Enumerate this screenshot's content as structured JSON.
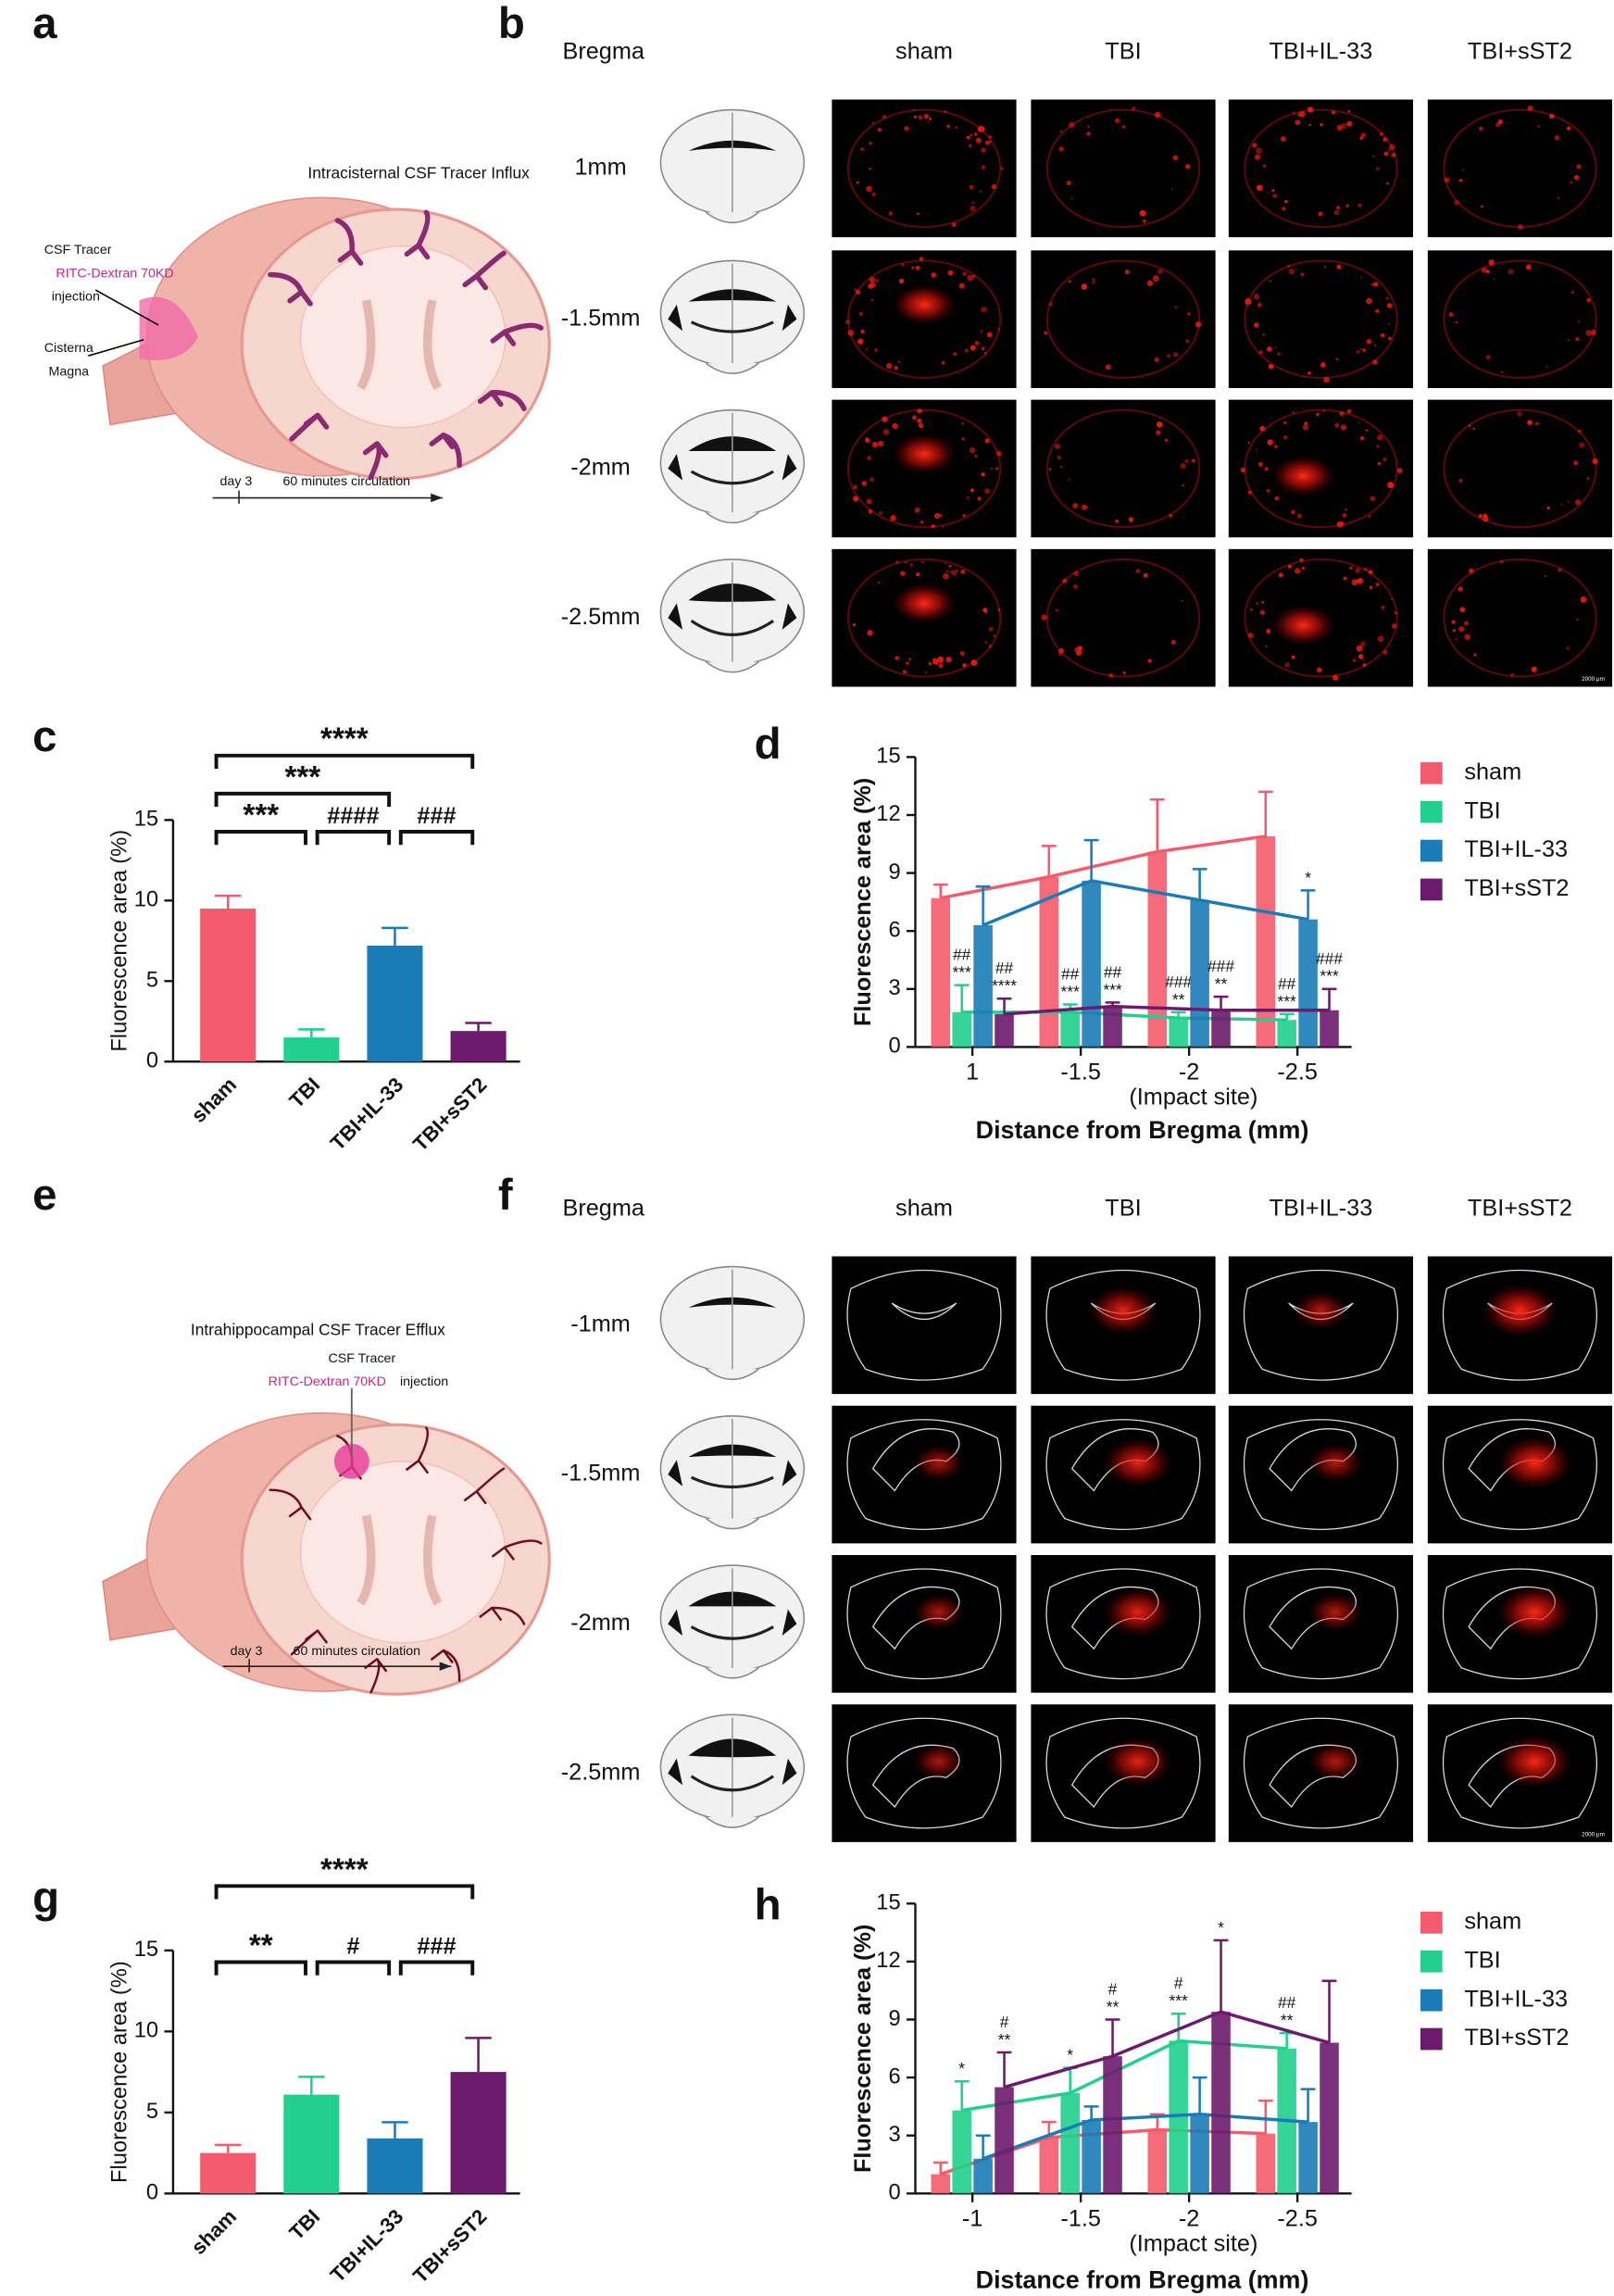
{
  "figure": {
    "panel_labels": [
      "a",
      "b",
      "c",
      "d",
      "e",
      "f",
      "g",
      "h"
    ],
    "a": {
      "title": "Intracisternal  CSF Tracer Influx",
      "tracer": "CSF Tracer",
      "dextran": "RITC-Dextran 70KD",
      "injection": "injection",
      "cisterna": "Cisterna",
      "magna": "Magna",
      "day": "day 3",
      "circulation": "60 minutes circulation"
    },
    "b": {
      "bregma": "Bregma",
      "columns": [
        "sham",
        "TBI",
        "TBI+IL-33",
        "TBI+sST2"
      ],
      "rows": [
        "1mm",
        "-1.5mm",
        "-2mm",
        "-2.5mm"
      ],
      "scale_bar": "2000 μm"
    },
    "e": {
      "title": "Intrahippocampal  CSF Tracer Efflux",
      "tracer": "CSF Tracer",
      "dextran": "RITC-Dextran 70KD",
      "injection": "injection",
      "day": "day 3",
      "circulation": "60 minutes circulation"
    },
    "f": {
      "bregma": "Bregma",
      "columns": [
        "sham",
        "TBI",
        "TBI+IL-33",
        "TBI+sST2"
      ],
      "rows": [
        "-1mm",
        "-1.5mm",
        "-2mm",
        "-2.5mm"
      ],
      "scale_bar": "2000 μm"
    }
  },
  "chart_data": [
    {
      "type": "bar",
      "ylabel": "Fluorescence area (%)",
      "categories": [
        "sham",
        "TBI",
        "TBI+IL-33",
        "TBI+sST2"
      ],
      "values": [
        9.5,
        1.5,
        7.2,
        1.9
      ],
      "errors": [
        0.8,
        0.5,
        1.1,
        0.5
      ],
      "colors": [
        "#f45b6c",
        "#20d08c",
        "#1a7bb6",
        "#6b1a6c"
      ],
      "ylim": [
        0,
        15
      ],
      "yticks": [
        0,
        5,
        10,
        15
      ],
      "brackets": [
        {
          "text": "****",
          "between": [
            "sham",
            "TBI+sST2"
          ]
        },
        {
          "text": "***",
          "between": [
            "sham",
            "TBI+IL-33"
          ]
        },
        {
          "text": "***",
          "between": [
            "sham",
            "TBI"
          ]
        },
        {
          "text": "####",
          "between": [
            "TBI",
            "TBI+IL-33"
          ]
        },
        {
          "text": "###",
          "between": [
            "TBI+IL-33",
            "TBI+sST2"
          ]
        }
      ]
    },
    {
      "type": "bar",
      "ylabel": "Fluorescence area (%)",
      "xlabel": "Distance from Bregma (mm)",
      "note": "(Impact site)",
      "note_at": "-2",
      "connect_series": true,
      "categories": [
        "1",
        "-1.5",
        "-2",
        "-2.5"
      ],
      "ylim": [
        0,
        15
      ],
      "yticks": [
        0,
        3,
        6,
        9,
        12,
        15
      ],
      "series": [
        {
          "name": "sham",
          "color": "#f45b6c",
          "values": [
            7.7,
            8.8,
            10.1,
            10.9
          ],
          "errors": [
            0.7,
            1.6,
            2.7,
            2.3
          ]
        },
        {
          "name": "TBI",
          "color": "#20d08c",
          "values": [
            1.8,
            1.8,
            1.5,
            1.4
          ],
          "errors": [
            1.4,
            0.4,
            0.3,
            0.3
          ],
          "annotations": [
            [
              "##",
              "***"
            ],
            [
              "##",
              "***"
            ],
            [
              "###",
              "**"
            ],
            [
              "##",
              "***"
            ]
          ]
        },
        {
          "name": "TBI+IL-33",
          "color": "#1a7bb6",
          "values": [
            6.3,
            8.6,
            7.6,
            6.6
          ],
          "errors": [
            2.0,
            2.1,
            1.6,
            1.5
          ],
          "annotations": [
            null,
            null,
            null,
            [
              "*"
            ]
          ]
        },
        {
          "name": "TBI+sST2",
          "color": "#6b1a6c",
          "values": [
            1.7,
            2.1,
            1.9,
            1.9
          ],
          "errors": [
            0.8,
            0.2,
            0.7,
            1.1
          ],
          "annotations": [
            [
              "##",
              "****"
            ],
            [
              "##",
              "***"
            ],
            [
              "###",
              "**"
            ],
            [
              "###",
              "***"
            ]
          ]
        }
      ]
    },
    {
      "type": "bar",
      "ylabel": "Fluorescence area (%)",
      "categories": [
        "sham",
        "TBI",
        "TBI+IL-33",
        "TBI+sST2"
      ],
      "values": [
        2.5,
        6.1,
        3.4,
        7.5
      ],
      "errors": [
        0.5,
        1.1,
        1.0,
        2.1
      ],
      "colors": [
        "#f45b6c",
        "#20d08c",
        "#1a7bb6",
        "#6b1a6c"
      ],
      "ylim": [
        0,
        15
      ],
      "yticks": [
        0,
        5,
        10,
        15
      ],
      "brackets": [
        {
          "text": "****",
          "between": [
            "sham",
            "TBI+sST2"
          ]
        },
        {
          "text": "**",
          "between": [
            "sham",
            "TBI"
          ]
        },
        {
          "text": "#",
          "between": [
            "TBI",
            "TBI+IL-33"
          ]
        },
        {
          "text": "###",
          "between": [
            "TBI+IL-33",
            "TBI+sST2"
          ]
        }
      ]
    },
    {
      "type": "bar",
      "ylabel": "Fluorescence area (%)",
      "xlabel": "Distance from Bregma (mm)",
      "note": "(Impact site)",
      "note_at": "-2",
      "connect_series": true,
      "categories": [
        "-1",
        "-1.5",
        "-2",
        "-2.5"
      ],
      "ylim": [
        0,
        15
      ],
      "yticks": [
        0,
        3,
        6,
        9,
        12,
        15
      ],
      "series": [
        {
          "name": "sham",
          "color": "#f45b6c",
          "values": [
            1.0,
            2.9,
            3.3,
            3.1
          ],
          "errors": [
            0.6,
            0.8,
            0.8,
            1.7
          ]
        },
        {
          "name": "TBI",
          "color": "#20d08c",
          "values": [
            4.3,
            5.2,
            7.9,
            7.5
          ],
          "errors": [
            1.5,
            1.3,
            1.4,
            0.8
          ],
          "annotations": [
            [
              "*"
            ],
            [
              "*"
            ],
            [
              "#",
              "***"
            ],
            [
              "##",
              "**"
            ]
          ]
        },
        {
          "name": "TBI+IL-33",
          "color": "#1a7bb6",
          "values": [
            1.8,
            3.8,
            4.1,
            3.7
          ],
          "errors": [
            1.2,
            0.7,
            1.9,
            1.7
          ]
        },
        {
          "name": "TBI+sST2",
          "color": "#6b1a6c",
          "values": [
            5.5,
            7.1,
            9.4,
            7.8
          ],
          "errors": [
            1.8,
            1.9,
            3.7,
            3.2
          ],
          "annotations": [
            [
              "#",
              "**"
            ],
            [
              "#",
              "**"
            ],
            [
              "*"
            ],
            null
          ]
        }
      ]
    }
  ]
}
